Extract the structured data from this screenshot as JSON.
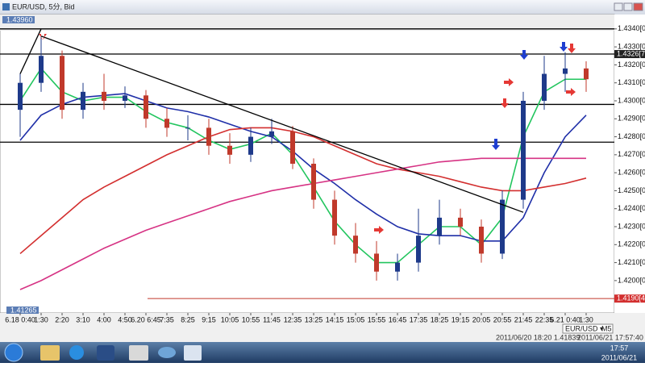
{
  "window": {
    "title": "EUR/USD, 5分, Bid"
  },
  "chart_data": {
    "type": "candlestick",
    "categories": [
      "6.18 0:40",
      "1:30",
      "2:20",
      "3:10",
      "4:00",
      "4:50",
      "6.20 6:45",
      "7:35",
      "8:25",
      "9:15",
      "10:05",
      "10:55",
      "11:45",
      "12:35",
      "13:25",
      "14:15",
      "15:05",
      "15:55",
      "16:45",
      "17:35",
      "18:25",
      "19:15",
      "20:05",
      "20:55",
      "21:45",
      "22:35",
      "6.21 0:40",
      "1:30"
    ],
    "open": [
      1.4295,
      1.431,
      1.4325,
      1.4295,
      1.4305,
      1.43,
      1.4303,
      1.429,
      1.4285,
      1.4285,
      1.4275,
      1.427,
      1.428,
      1.4283,
      1.4265,
      1.4245,
      1.4225,
      1.4215,
      1.4205,
      1.421,
      1.4225,
      1.4235,
      1.423,
      1.4215,
      1.4245,
      1.43,
      1.4315,
      1.4318
    ],
    "high": [
      1.4315,
      1.4336,
      1.4328,
      1.431,
      1.4315,
      1.4308,
      1.4306,
      1.4296,
      1.4292,
      1.429,
      1.4282,
      1.4285,
      1.429,
      1.4286,
      1.4268,
      1.425,
      1.4232,
      1.4222,
      1.4215,
      1.424,
      1.4245,
      1.424,
      1.4234,
      1.425,
      1.4305,
      1.4325,
      1.4327,
      1.4322
    ],
    "low": [
      1.428,
      1.4305,
      1.429,
      1.429,
      1.4295,
      1.4296,
      1.4285,
      1.428,
      1.4278,
      1.427,
      1.4265,
      1.4266,
      1.4276,
      1.4262,
      1.424,
      1.422,
      1.421,
      1.42,
      1.42,
      1.4205,
      1.422,
      1.4225,
      1.421,
      1.4212,
      1.424,
      1.4295,
      1.4305,
      1.4305
    ],
    "close": [
      1.431,
      1.4325,
      1.4295,
      1.4305,
      1.43,
      1.4303,
      1.429,
      1.4285,
      1.4285,
      1.4275,
      1.427,
      1.428,
      1.4283,
      1.4265,
      1.4245,
      1.4225,
      1.4215,
      1.4205,
      1.421,
      1.4225,
      1.4235,
      1.423,
      1.4215,
      1.4245,
      1.43,
      1.4315,
      1.4318,
      1.4312
    ],
    "up_color": "#1e3a8a",
    "down_color": "#c0392b",
    "series": [
      {
        "color": "#22c55e",
        "values": [
          1.43,
          1.4318,
          1.4305,
          1.43,
          1.4302,
          1.4302,
          1.4294,
          1.4288,
          1.4285,
          1.4278,
          1.4273,
          1.4276,
          1.4282,
          1.427,
          1.4252,
          1.4233,
          1.422,
          1.421,
          1.421,
          1.422,
          1.423,
          1.423,
          1.422,
          1.4235,
          1.428,
          1.4305,
          1.4312,
          1.4312
        ]
      },
      {
        "color": "#1f2fa8",
        "values": [
          1.4278,
          1.4292,
          1.4298,
          1.4302,
          1.4303,
          1.4304,
          1.43,
          1.4296,
          1.4294,
          1.4291,
          1.4287,
          1.4283,
          1.428,
          1.4272,
          1.4262,
          1.4254,
          1.4245,
          1.4237,
          1.423,
          1.4226,
          1.4225,
          1.4225,
          1.4222,
          1.4222,
          1.4235,
          1.426,
          1.428,
          1.4292
        ]
      },
      {
        "color": "#d32f2f",
        "values": [
          1.4215,
          1.4225,
          1.4235,
          1.4245,
          1.4252,
          1.4258,
          1.4264,
          1.427,
          1.4275,
          1.428,
          1.4284,
          1.4285,
          1.4285,
          1.4283,
          1.428,
          1.4275,
          1.427,
          1.4265,
          1.4262,
          1.426,
          1.4258,
          1.4255,
          1.4252,
          1.425,
          1.425,
          1.4252,
          1.4254,
          1.4257
        ]
      },
      {
        "color": "#d63384",
        "values": [
          1.4195,
          1.42,
          1.4206,
          1.4212,
          1.4218,
          1.4223,
          1.4228,
          1.4232,
          1.4236,
          1.424,
          1.4244,
          1.4247,
          1.425,
          1.4252,
          1.4254,
          1.4256,
          1.4258,
          1.426,
          1.4262,
          1.4264,
          1.4266,
          1.4267,
          1.4268,
          1.4268,
          1.4268,
          1.4268,
          1.4268,
          1.4268
        ]
      }
    ],
    "hlines": [
      1.434,
      1.4326,
      1.4298,
      1.4277
    ],
    "trendlines": [
      {
        "x": [
          1,
          24
        ],
        "y": [
          1.4336,
          1.4238
        ]
      },
      {
        "x": [
          0,
          1
        ],
        "y": [
          1.4315,
          1.434
        ]
      }
    ],
    "ylim": [
      1.4182,
      1.4348
    ],
    "yticks": [
      {
        "value": 1.434,
        "label": "1.4340[0]"
      },
      {
        "value": 1.433,
        "label": "1.4330[0]"
      },
      {
        "value": 1.432,
        "label": "1.4320[0]"
      },
      {
        "value": 1.431,
        "label": "1.4310[0]"
      },
      {
        "value": 1.43,
        "label": "1.4300[0]"
      },
      {
        "value": 1.429,
        "label": "1.4290[0]"
      },
      {
        "value": 1.428,
        "label": "1.4280[0]"
      },
      {
        "value": 1.427,
        "label": "1.4270[0]"
      },
      {
        "value": 1.426,
        "label": "1.4260[0]"
      },
      {
        "value": 1.425,
        "label": "1.4250[0]"
      },
      {
        "value": 1.424,
        "label": "1.4240[0]"
      },
      {
        "value": 1.423,
        "label": "1.4230[0]"
      },
      {
        "value": 1.422,
        "label": "1.4220[0]"
      },
      {
        "value": 1.421,
        "label": "1.4210[0]"
      },
      {
        "value": 1.42,
        "label": "1.4200[0]"
      }
    ],
    "current_price": {
      "value": 1.4326,
      "label": "1.4326[7"
    },
    "low_marker": {
      "value": 1.419,
      "label": "1.4190[4"
    },
    "window_high": "1.43960",
    "window_low": "1.41265"
  },
  "tab": {
    "symbol": "EUR/USD ▾",
    "period": "M5"
  },
  "status": {
    "cursor": "2011/06/20 18:20  1.41839",
    "server_time": "2011/06/21 17:57:40"
  },
  "taskbar": {
    "time": "17:57",
    "date": "2011/06/21"
  }
}
